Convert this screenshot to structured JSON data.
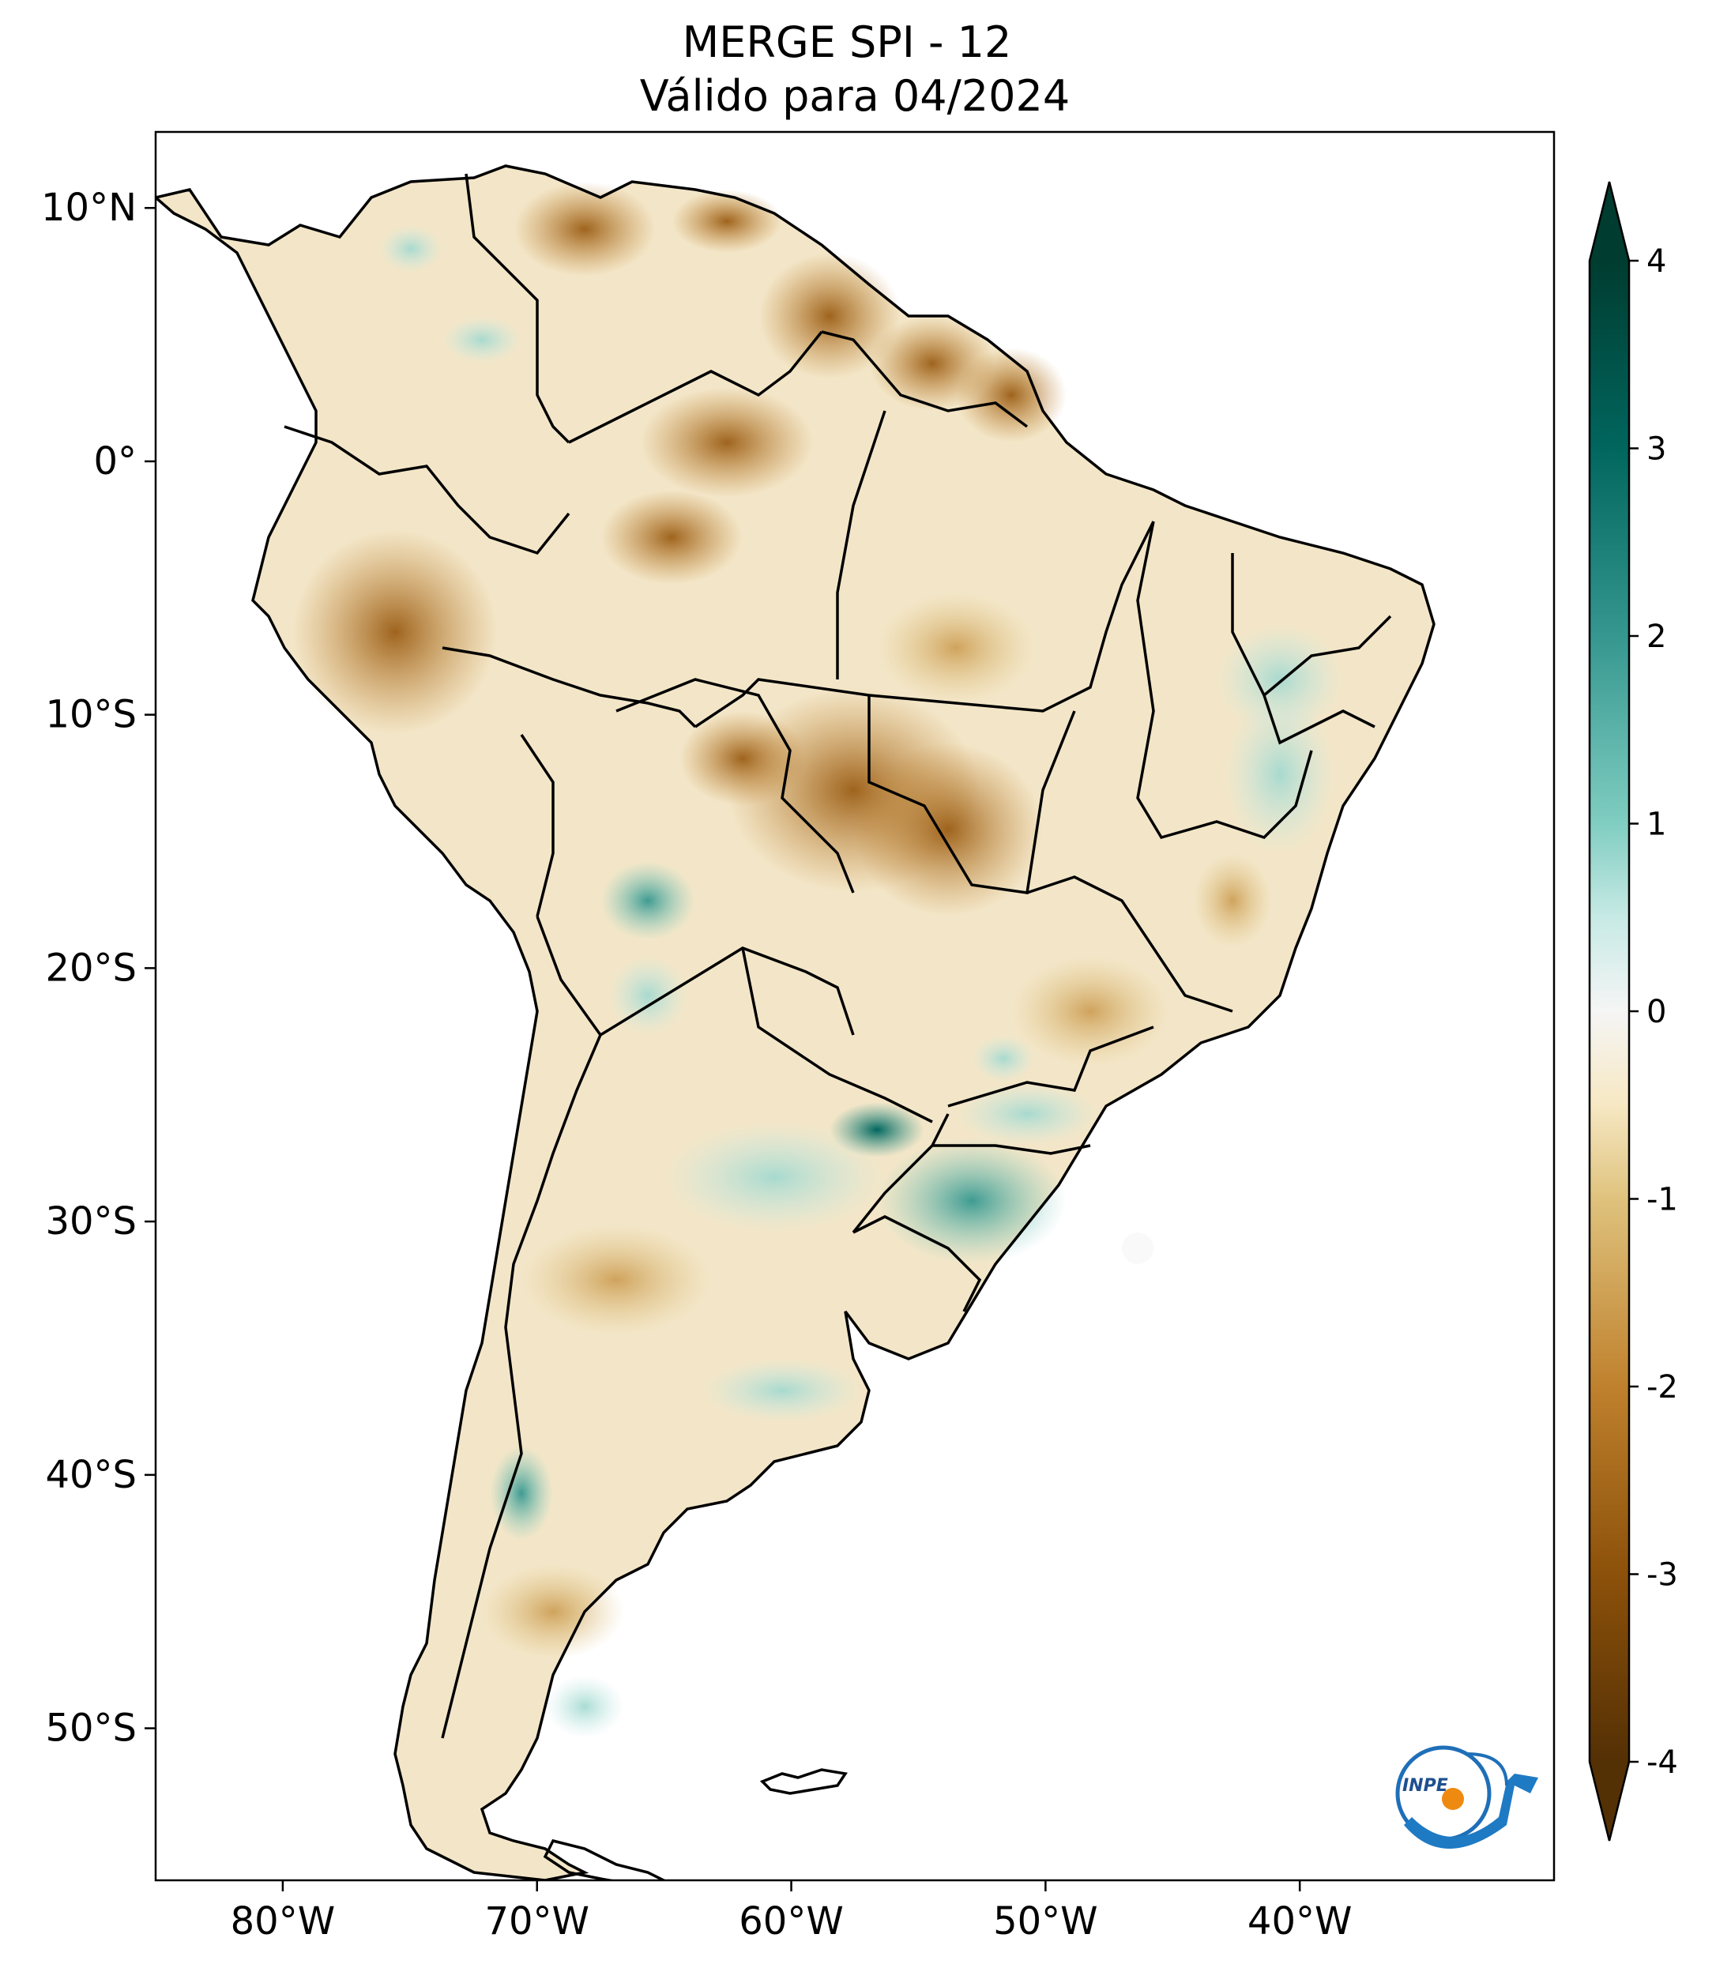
{
  "title": {
    "line1": "MERGE   SPI - 12",
    "line2": "Válido para 04/2024"
  },
  "map": {
    "type": "choropleth-raster",
    "variable": "SPI - 12",
    "region": "South America",
    "lon_range": [
      -85,
      -30
    ],
    "lat_range": [
      -56,
      13
    ],
    "y_ticks": [
      {
        "value": 10,
        "label": "10°N"
      },
      {
        "value": 0,
        "label": "0°"
      },
      {
        "value": -10,
        "label": "10°S"
      },
      {
        "value": -20,
        "label": "20°S"
      },
      {
        "value": -30,
        "label": "30°S"
      },
      {
        "value": -40,
        "label": "40°S"
      },
      {
        "value": -50,
        "label": "50°S"
      }
    ],
    "x_ticks": [
      {
        "value": -80,
        "label": "80°W"
      },
      {
        "value": -70,
        "label": "70°W"
      },
      {
        "value": -60,
        "label": "60°W"
      },
      {
        "value": -50,
        "label": "50°W"
      },
      {
        "value": -40,
        "label": "40°W"
      }
    ],
    "colors": {
      "land_outline": "#000000",
      "ocean": "#ffffff"
    }
  },
  "colorbar": {
    "range": [
      -4,
      4
    ],
    "extend": "both",
    "colormap": "BrBG",
    "ticks": [
      {
        "value": 4,
        "label": "4"
      },
      {
        "value": 3,
        "label": "3"
      },
      {
        "value": 2,
        "label": "2"
      },
      {
        "value": 1,
        "label": "1"
      },
      {
        "value": 0,
        "label": "0"
      },
      {
        "value": -1,
        "label": "-1"
      },
      {
        "value": -2,
        "label": "-2"
      },
      {
        "value": -3,
        "label": "-3"
      },
      {
        "value": -4,
        "label": "-4"
      }
    ],
    "stops": [
      {
        "value": -4,
        "color": "#543005"
      },
      {
        "value": -3,
        "color": "#8c510a"
      },
      {
        "value": -2,
        "color": "#bf812d"
      },
      {
        "value": -1,
        "color": "#dfc27d"
      },
      {
        "value": -0.5,
        "color": "#f6e8c3"
      },
      {
        "value": 0,
        "color": "#f5f5f5"
      },
      {
        "value": 0.5,
        "color": "#c7eae5"
      },
      {
        "value": 1,
        "color": "#80cdc1"
      },
      {
        "value": 2,
        "color": "#35978f"
      },
      {
        "value": 3,
        "color": "#01665e"
      },
      {
        "value": 4,
        "color": "#003c30"
      }
    ]
  },
  "logo": {
    "text": "INPE"
  }
}
